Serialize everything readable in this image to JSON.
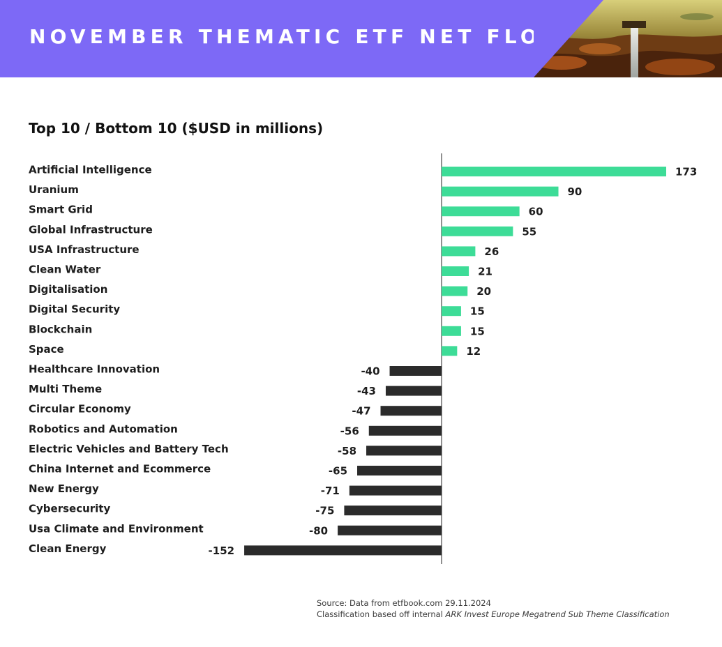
{
  "header": {
    "title": "NOVEMBER THEMATIC ETF NET FLOWS",
    "background_color": "#7d69f6"
  },
  "chart_data": {
    "type": "bar",
    "orientation": "horizontal",
    "title": "Top 10 / Bottom 10 ($USD in millions)",
    "xlabel": "",
    "ylabel": "",
    "grid": false,
    "categories": [
      "Artificial Intelligence",
      "Uranium",
      "Smart Grid",
      "Global Infrastructure",
      "USA Infrastructure",
      "Clean Water",
      "Digitalisation",
      "Digital Security",
      "Blockchain",
      "Space",
      "Healthcare Innovation",
      "Multi Theme",
      "Circular Economy",
      "Robotics and Automation",
      "Electric Vehicles and Battery Tech",
      "China Internet and Ecommerce",
      "New Energy",
      "Cybersecurity",
      "Usa Climate and Environment",
      "Clean Energy"
    ],
    "values": [
      173,
      90,
      60,
      55,
      26,
      21,
      20,
      15,
      15,
      12,
      -40,
      -43,
      -47,
      -56,
      -58,
      -65,
      -71,
      -75,
      -80,
      -152
    ],
    "xlim": [
      -152,
      173
    ],
    "colors": {
      "positive": "#3ddc97",
      "negative": "#2b2b2b"
    }
  },
  "footer": {
    "source_line": "Source: Data from etfbook.com 29.11.2024",
    "classification_prefix": "Classification based off internal ",
    "classification_emphasis": "ARK Invest Europe Megatrend Sub Theme Classification"
  }
}
